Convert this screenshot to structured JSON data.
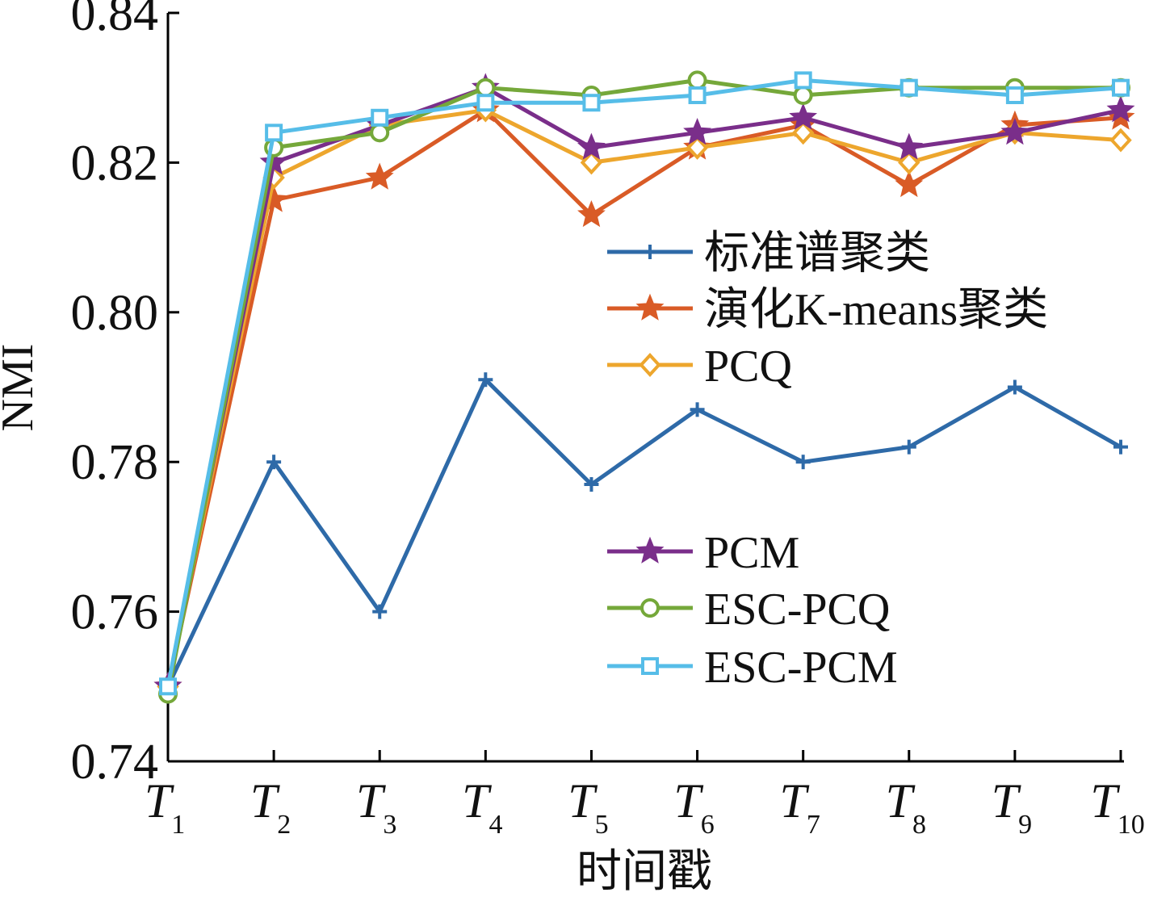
{
  "chart_data": {
    "type": "line",
    "xlabel": "时间戳",
    "ylabel": "NMI",
    "ylim": [
      0.74,
      0.84
    ],
    "yticks": [
      "0.74",
      "0.76",
      "0.78",
      "0.80",
      "0.82",
      "0.84"
    ],
    "categories": [
      {
        "base": "T",
        "sub": "1"
      },
      {
        "base": "T",
        "sub": "2"
      },
      {
        "base": "T",
        "sub": "3"
      },
      {
        "base": "T",
        "sub": "4"
      },
      {
        "base": "T",
        "sub": "5"
      },
      {
        "base": "T",
        "sub": "6"
      },
      {
        "base": "T",
        "sub": "7"
      },
      {
        "base": "T",
        "sub": "8"
      },
      {
        "base": "T",
        "sub": "9"
      },
      {
        "base": "T",
        "sub": "10"
      }
    ],
    "grid": false,
    "legend_position": "right",
    "series": [
      {
        "name": "标准谱聚类",
        "color": "#2e6aa8",
        "marker": "plus",
        "values": [
          0.75,
          0.78,
          0.76,
          0.791,
          0.777,
          0.787,
          0.78,
          0.782,
          0.79,
          0.782
        ]
      },
      {
        "name": "演化K-means聚类",
        "color": "#d95b26",
        "marker": "star",
        "values": [
          0.75,
          0.815,
          0.818,
          0.827,
          0.813,
          0.822,
          0.825,
          0.817,
          0.825,
          0.826
        ]
      },
      {
        "name": "PCQ",
        "color": "#eda62d",
        "marker": "diamond",
        "values": [
          0.75,
          0.818,
          0.825,
          0.827,
          0.82,
          0.822,
          0.824,
          0.82,
          0.824,
          0.823
        ]
      },
      {
        "name": "PCM",
        "color": "#7a2e8a",
        "marker": "star",
        "values": [
          0.75,
          0.82,
          0.825,
          0.83,
          0.822,
          0.824,
          0.826,
          0.822,
          0.824,
          0.827
        ]
      },
      {
        "name": "ESC-PCQ",
        "color": "#75a83a",
        "marker": "circle",
        "values": [
          0.749,
          0.822,
          0.824,
          0.83,
          0.829,
          0.831,
          0.829,
          0.83,
          0.83,
          0.83
        ]
      },
      {
        "name": "ESC-PCM",
        "color": "#56bde8",
        "marker": "square",
        "values": [
          0.75,
          0.824,
          0.826,
          0.828,
          0.828,
          0.829,
          0.831,
          0.83,
          0.829,
          0.83
        ]
      }
    ]
  }
}
